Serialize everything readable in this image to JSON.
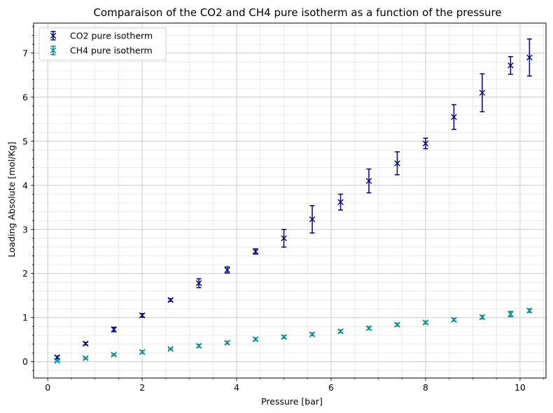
{
  "chart_data": {
    "type": "scatter",
    "title": "Comparaison of the CO2 and CH4 pure isotherm as a function of the pressure",
    "xlabel": "Pressure [bar]",
    "ylabel": "Loading Absolute [mol/Kg]",
    "xlim": [
      -0.3,
      10.55
    ],
    "ylim": [
      -0.37,
      7.68
    ],
    "xticks": [
      0,
      2,
      4,
      6,
      8,
      10
    ],
    "yticks": [
      0,
      1,
      2,
      3,
      4,
      5,
      6,
      7
    ],
    "x_minor_step": 0.5,
    "y_minor_step": 0.2,
    "grid": "major and minor",
    "legend_position": "top-left",
    "marker": "x with error bars",
    "series": [
      {
        "name": "CO2 pure isotherm",
        "color": "#000080",
        "x": [
          0.2,
          0.8,
          1.4,
          2.0,
          2.6,
          3.2,
          3.8,
          4.4,
          5.0,
          5.6,
          6.2,
          6.8,
          7.4,
          8.0,
          8.6,
          9.2,
          9.8,
          10.2
        ],
        "y": [
          0.1,
          0.41,
          0.73,
          1.05,
          1.4,
          1.78,
          2.08,
          2.5,
          2.8,
          3.23,
          3.62,
          4.1,
          4.5,
          4.95,
          5.55,
          6.1,
          6.72,
          6.9
        ],
        "yerr": [
          0.03,
          0.03,
          0.05,
          0.04,
          0.03,
          0.1,
          0.07,
          0.06,
          0.2,
          0.31,
          0.18,
          0.27,
          0.26,
          0.12,
          0.28,
          0.43,
          0.2,
          0.42
        ]
      },
      {
        "name": "CH4 pure isotherm",
        "color": "#008B8B",
        "x": [
          0.2,
          0.8,
          1.4,
          2.0,
          2.6,
          3.2,
          3.8,
          4.4,
          5.0,
          5.6,
          6.2,
          6.8,
          7.4,
          8.0,
          8.6,
          9.2,
          9.8,
          10.2
        ],
        "y": [
          0.02,
          0.08,
          0.16,
          0.22,
          0.29,
          0.36,
          0.43,
          0.51,
          0.56,
          0.62,
          0.69,
          0.76,
          0.84,
          0.89,
          0.95,
          1.01,
          1.08,
          1.16
        ],
        "yerr": [
          0.02,
          0.02,
          0.02,
          0.03,
          0.02,
          0.03,
          0.03,
          0.03,
          0.03,
          0.03,
          0.03,
          0.03,
          0.03,
          0.03,
          0.03,
          0.04,
          0.06,
          0.04
        ]
      }
    ]
  }
}
